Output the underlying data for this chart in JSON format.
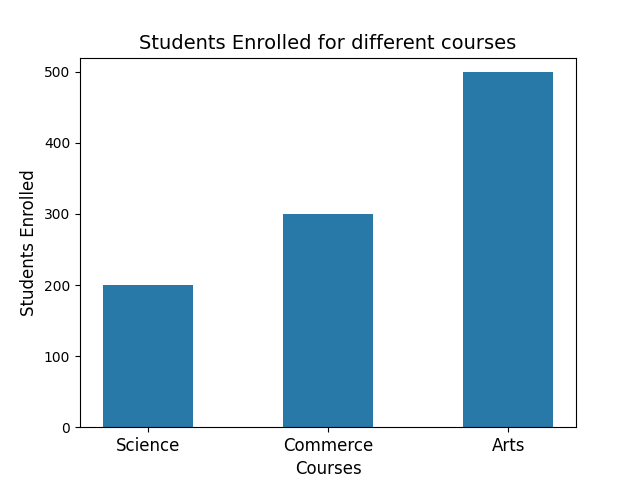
{
  "categories": [
    "Science",
    "Commerce",
    "Arts"
  ],
  "values": [
    200,
    300,
    500
  ],
  "bar_color": "#2878a8",
  "bar_width": 0.5,
  "title": "Students Enrolled for different courses",
  "xlabel": "Courses",
  "ylabel": "Students Enrolled",
  "ylim": [
    0,
    520
  ],
  "title_fontsize": 14,
  "label_fontsize": 12
}
